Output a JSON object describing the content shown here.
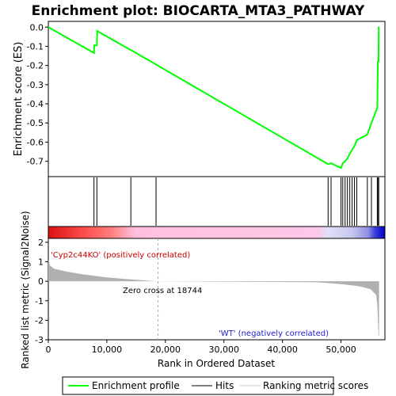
{
  "chart_data": {
    "type": "line",
    "title": "Enrichment plot: BIOCARTA_MTA3_PATHWAY",
    "top_panel": {
      "ylabel": "Enrichment score (ES)",
      "ylim": [
        -0.78,
        0.03
      ],
      "yticks": [
        "0.0",
        "-0.1",
        "-0.2",
        "-0.3",
        "-0.4",
        "-0.5",
        "-0.6",
        "-0.7"
      ],
      "ytick_values": [
        0.0,
        -0.1,
        -0.2,
        -0.3,
        -0.4,
        -0.5,
        -0.6,
        -0.7
      ],
      "series": [
        {
          "name": "Enrichment profile",
          "color": "#00ff00",
          "x": [
            0,
            7800,
            7850,
            8300,
            8350,
            14100,
            14150,
            47800,
            48300,
            50000,
            50300,
            50700,
            51100,
            51500,
            51900,
            52300,
            52700,
            54500,
            55200,
            56200,
            56300,
            56400,
            56450,
            56500
          ],
          "y": [
            0.0,
            -0.135,
            -0.095,
            -0.095,
            -0.02,
            -0.12,
            -0.12,
            -0.715,
            -0.71,
            -0.735,
            -0.71,
            -0.7,
            -0.685,
            -0.66,
            -0.64,
            -0.62,
            -0.59,
            -0.56,
            -0.5,
            -0.42,
            -0.18,
            -0.18,
            0.0,
            0.0
          ]
        }
      ]
    },
    "hits_panel": {
      "hit_positions": [
        7800,
        8300,
        14100,
        18400,
        47800,
        48300,
        50000,
        50300,
        50700,
        51100,
        51500,
        51900,
        52300,
        52700,
        54500,
        55200,
        56200,
        56300,
        56450
      ]
    },
    "bottom_panel": {
      "ylabel": "Ranked list metric (Signal2Noise)",
      "ylim": [
        -3,
        2.2
      ],
      "yticks": [
        "2",
        "1",
        "0",
        "-1",
        "-2",
        "-3"
      ],
      "ytick_values": [
        2,
        1,
        0,
        -1,
        -2,
        -3
      ],
      "metric_x": [
        0,
        300,
        1000,
        3000,
        6000,
        10000,
        14000,
        18744,
        46000,
        50000,
        53000,
        55000,
        56000,
        56200,
        56400,
        56500
      ],
      "metric_y": [
        1.1,
        0.8,
        0.65,
        0.5,
        0.35,
        0.2,
        0.1,
        0.0,
        -0.05,
        -0.15,
        -0.25,
        -0.4,
        -0.7,
        -1.2,
        -2.8,
        -2.8
      ],
      "zero_cross_label": "Zero cross at 18744",
      "zero_cross": 18744,
      "pos_label": "'Cyp2c44KO' (positively correlated)",
      "neg_label": "'WT' (negatively correlated)"
    },
    "x_axis": {
      "xlabel": "Rank in Ordered Dataset",
      "xlim": [
        0,
        57500
      ],
      "xticks": [
        "0",
        "10,000",
        "20,000",
        "30,000",
        "40,000",
        "50,000"
      ],
      "xtick_values": [
        0,
        10000,
        20000,
        30000,
        40000,
        50000
      ]
    },
    "legend": {
      "placement": "bottom",
      "entries": [
        "Enrichment profile",
        "Hits",
        "Ranking metric scores"
      ]
    },
    "colors": {
      "profile": "#00ff00",
      "hits": "#000000",
      "metric": "#b0b0b0",
      "pos_band": "#ff0000",
      "mid_band": "#ffc0e0",
      "neg_band": "#0000dd",
      "zero_line": "#aaaaaa"
    }
  }
}
